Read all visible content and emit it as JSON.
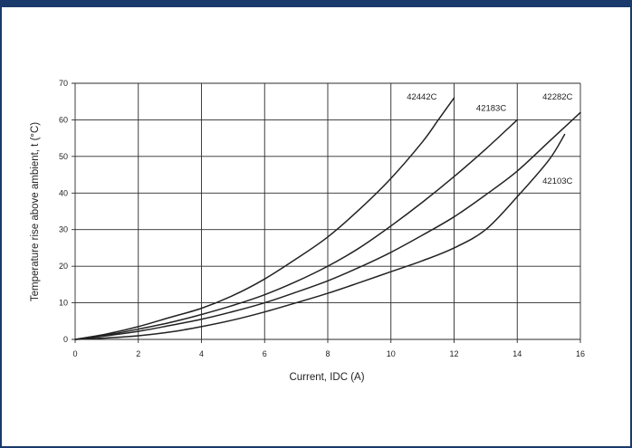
{
  "colors": {
    "frame": "#1a3a6b",
    "grid": "#2b2b2b",
    "curve": "#222222",
    "background": "#ffffff"
  },
  "chart_data": {
    "type": "line",
    "title": "",
    "xlabel": "Current, IDC (A)",
    "ylabel": "Temperature rise above ambient, t (°C)",
    "xlim": [
      0,
      16
    ],
    "ylim": [
      0,
      70
    ],
    "x_ticks": [
      0,
      2,
      4,
      6,
      8,
      10,
      12,
      14,
      16
    ],
    "y_ticks": [
      0,
      10,
      20,
      30,
      40,
      50,
      60,
      70
    ],
    "grid": true,
    "legend": "direct labels near curve ends",
    "series": [
      {
        "name": "42442C",
        "points": [
          [
            0,
            0
          ],
          [
            1,
            1.5
          ],
          [
            2,
            3.5
          ],
          [
            3,
            6
          ],
          [
            4,
            8.5
          ],
          [
            5,
            12
          ],
          [
            6,
            16.5
          ],
          [
            7,
            22
          ],
          [
            8,
            28
          ],
          [
            9,
            35.5
          ],
          [
            10,
            44
          ],
          [
            11,
            54
          ],
          [
            11.5,
            60
          ],
          [
            12,
            66
          ]
        ]
      },
      {
        "name": "42183C",
        "points": [
          [
            0,
            0
          ],
          [
            1,
            1.2
          ],
          [
            2,
            2.8
          ],
          [
            3,
            4.6
          ],
          [
            4,
            6.8
          ],
          [
            5,
            9.3
          ],
          [
            6,
            12.2
          ],
          [
            7,
            15.8
          ],
          [
            8,
            20
          ],
          [
            9,
            25
          ],
          [
            10,
            31
          ],
          [
            11,
            37.5
          ],
          [
            12,
            44.5
          ],
          [
            13,
            52
          ],
          [
            14,
            60
          ]
        ]
      },
      {
        "name": "42282C",
        "points": [
          [
            0,
            0
          ],
          [
            1,
            1
          ],
          [
            2,
            2.2
          ],
          [
            3,
            3.8
          ],
          [
            4,
            5.5
          ],
          [
            5,
            7.6
          ],
          [
            6,
            10
          ],
          [
            7,
            12.9
          ],
          [
            8,
            16
          ],
          [
            9,
            19.7
          ],
          [
            10,
            23.8
          ],
          [
            11,
            28.5
          ],
          [
            12,
            33.5
          ],
          [
            13,
            39.5
          ],
          [
            14,
            46
          ],
          [
            15,
            54
          ],
          [
            16,
            62
          ]
        ]
      },
      {
        "name": "42103C",
        "points": [
          [
            0,
            0
          ],
          [
            1,
            0.4
          ],
          [
            2,
            1
          ],
          [
            3,
            2
          ],
          [
            4,
            3.5
          ],
          [
            5,
            5.3
          ],
          [
            6,
            7.5
          ],
          [
            7,
            10
          ],
          [
            8,
            12.6
          ],
          [
            9,
            15.5
          ],
          [
            10,
            18.5
          ],
          [
            11,
            21.5
          ],
          [
            12,
            25
          ],
          [
            13,
            30
          ],
          [
            14,
            39
          ],
          [
            15,
            49
          ],
          [
            15.5,
            56
          ]
        ]
      }
    ],
    "series_label_positions": [
      {
        "name": "42442C",
        "x": 10.5,
        "y": 65.5
      },
      {
        "name": "42183C",
        "x": 12.7,
        "y": 62.5
      },
      {
        "name": "42282C",
        "x": 14.8,
        "y": 65.5
      },
      {
        "name": "42103C",
        "x": 14.8,
        "y": 42.5
      }
    ]
  }
}
